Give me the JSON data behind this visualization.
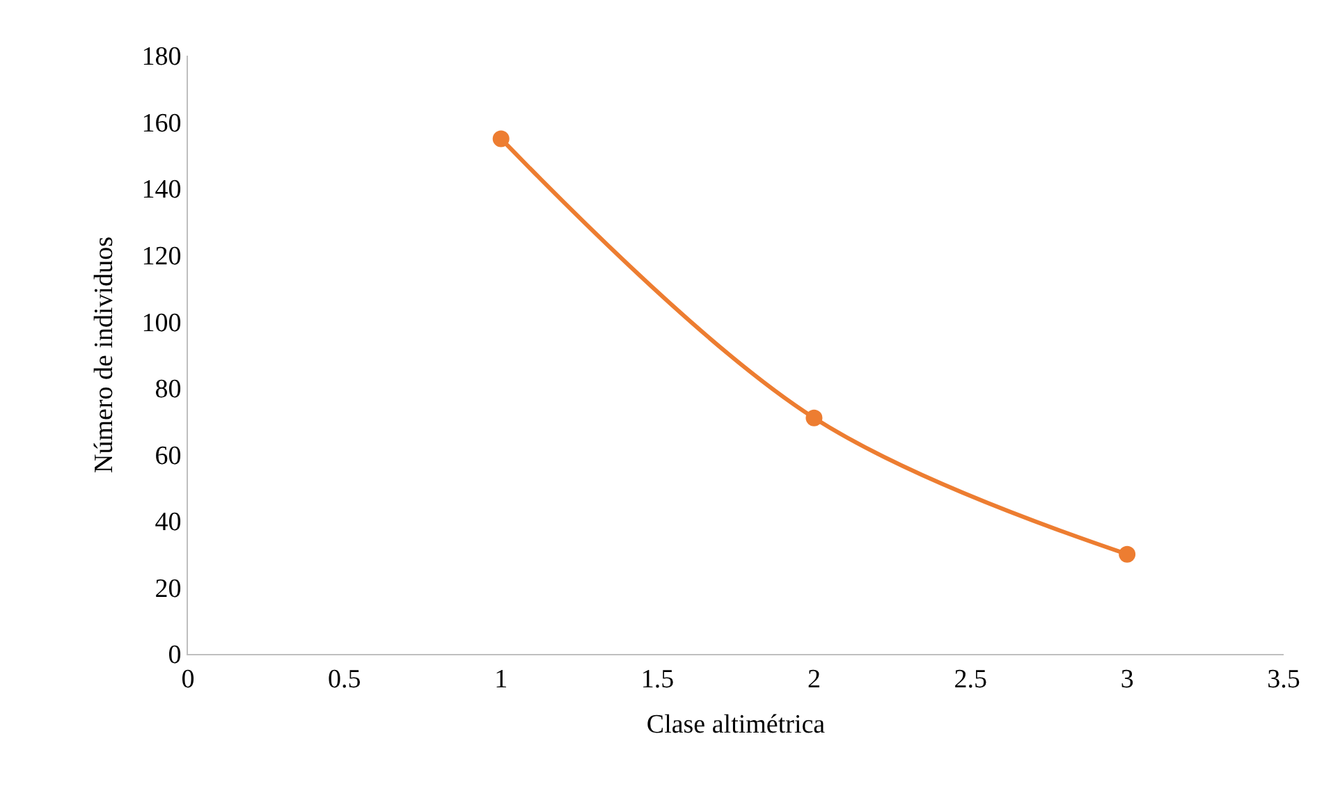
{
  "chart_data": {
    "type": "line",
    "xlabel": "Clase altimétrica",
    "ylabel": "Número de individuos",
    "x": [
      1,
      2,
      3
    ],
    "series": [
      {
        "color": "#ed7d31",
        "values": [
          155,
          71,
          30
        ]
      }
    ],
    "xlim": [
      0,
      3.5
    ],
    "xticks": [
      0,
      0.5,
      1,
      1.5,
      2,
      2.5,
      3,
      3.5
    ],
    "ylim": [
      0,
      180
    ],
    "yticks": [
      0,
      20,
      40,
      60,
      80,
      100,
      120,
      140,
      160,
      180
    ],
    "grid": false,
    "legend": false,
    "marker": "circle",
    "line_style": "solid"
  }
}
